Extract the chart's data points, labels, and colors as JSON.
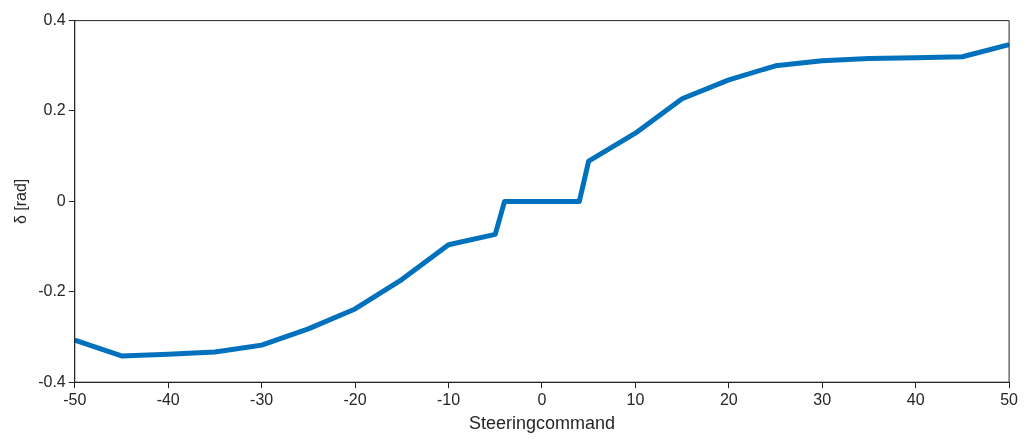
{
  "chart_data": {
    "type": "line",
    "xlabel": "Steeringcommand",
    "ylabel": "δ [rad]",
    "x": [
      -50,
      -45,
      -40,
      -35,
      -30,
      -25,
      -20,
      -15,
      -10,
      -5,
      -4,
      4,
      5,
      10,
      15,
      20,
      25,
      30,
      35,
      40,
      45,
      50
    ],
    "series": [
      {
        "color": "#0072bd",
        "values": [
          -0.307,
          -0.342,
          -0.338,
          -0.333,
          -0.318,
          -0.282,
          -0.238,
          -0.173,
          -0.096,
          -0.073,
          0,
          0,
          0.089,
          0.151,
          0.227,
          0.269,
          0.3,
          0.311,
          0.316,
          0.318,
          0.32,
          0.347
        ]
      }
    ],
    "xlim": [
      -50,
      50
    ],
    "xticks": [
      -50,
      -40,
      -30,
      -20,
      -10,
      0,
      10,
      20,
      30,
      40,
      50
    ],
    "ylim": [
      -0.4,
      0.4
    ],
    "yticks": [
      -0.4,
      -0.2,
      0,
      0.2,
      0.4
    ],
    "grid": false,
    "legend": false,
    "marker": "none",
    "line_style": "solid"
  }
}
